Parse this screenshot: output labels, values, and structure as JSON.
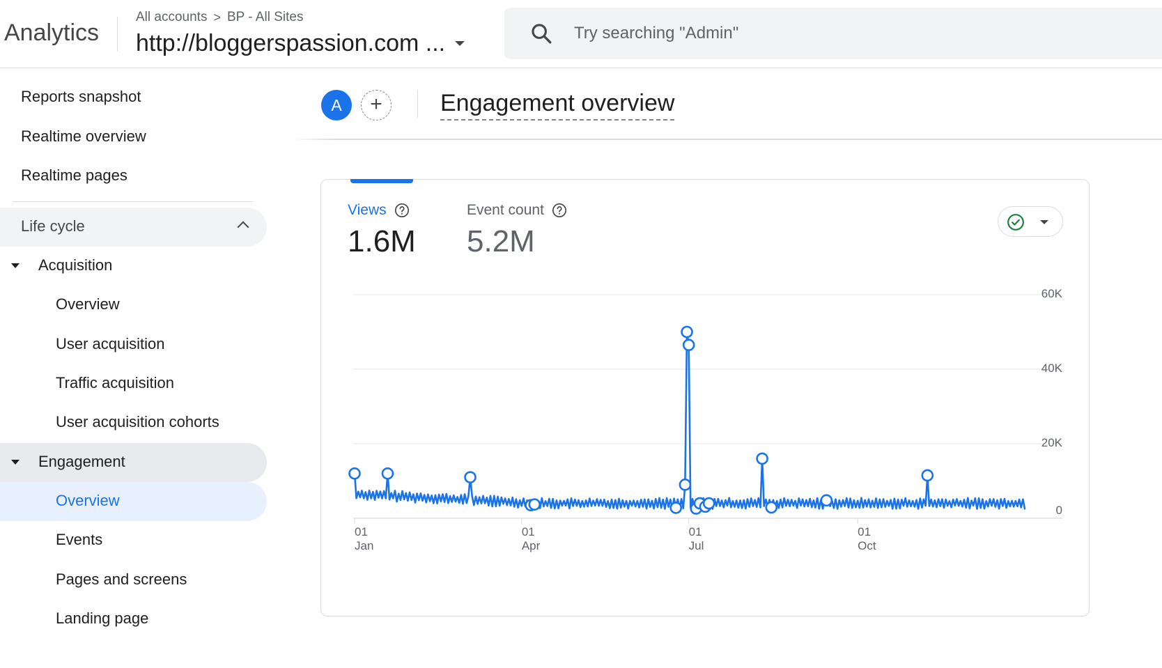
{
  "header": {
    "product_name": "Analytics",
    "breadcrumb": [
      "All accounts",
      "BP - All Sites"
    ],
    "breadcrumb_separator": ">",
    "property_name": "http://bloggerspassion.com ...",
    "search_placeholder": "Try searching \"Admin\""
  },
  "sidebar": {
    "top_items": [
      {
        "label": "Reports snapshot"
      },
      {
        "label": "Realtime overview"
      },
      {
        "label": "Realtime pages"
      }
    ],
    "section": {
      "label": "Life cycle",
      "expanded": true
    },
    "groups": [
      {
        "label": "Acquisition",
        "items": [
          {
            "label": "Overview"
          },
          {
            "label": "User acquisition"
          },
          {
            "label": "Traffic acquisition"
          },
          {
            "label": "User acquisition cohorts"
          }
        ]
      },
      {
        "label": "Engagement",
        "items": [
          {
            "label": "Overview",
            "selected": true
          },
          {
            "label": "Events"
          },
          {
            "label": "Pages and screens"
          },
          {
            "label": "Landing page"
          }
        ]
      }
    ]
  },
  "page": {
    "avatar_letter": "A",
    "add_comparison_symbol": "+",
    "title": "Engagement overview"
  },
  "card": {
    "metrics": [
      {
        "label": "Views",
        "value": "1.6M",
        "active": true
      },
      {
        "label": "Event count",
        "value": "5.2M",
        "active": false
      }
    ]
  },
  "colors": {
    "accent": "#1a73e8",
    "series": "#1a73e8",
    "check": "#188038",
    "gridline": "#e8eaed",
    "text_secondary": "#5f6368"
  },
  "icons": {
    "search": "search-icon",
    "help": "help-circle-icon",
    "check": "check-circle-icon",
    "expand": "chevron-up-icon"
  },
  "chart_data": {
    "type": "line",
    "series": [
      {
        "name": "Views",
        "values": []
      }
    ],
    "x_range": [
      "2024-01-01",
      "2024-12-31"
    ],
    "x_ticks": [
      {
        "date": "2024-01-01",
        "day": "01",
        "month": "Jan"
      },
      {
        "date": "2024-04-01",
        "day": "01",
        "month": "Apr"
      },
      {
        "date": "2024-07-01",
        "day": "01",
        "month": "Jul"
      },
      {
        "date": "2024-10-01",
        "day": "01",
        "month": "Oct"
      }
    ],
    "y_ticks": [
      "0",
      "20K",
      "40K",
      "60K"
    ],
    "y_tick_values": [
      0,
      20000,
      40000,
      60000
    ],
    "ylim": [
      0,
      60000
    ],
    "grid": true,
    "y_axis_side": "right",
    "baseline_daily_views": 4000,
    "peaks": [
      {
        "date": "2024-01-01",
        "value": 12000
      },
      {
        "date": "2024-01-19",
        "value": 12000
      },
      {
        "date": "2024-03-04",
        "value": 11000
      },
      {
        "date": "2024-06-30",
        "value": 50000
      },
      {
        "date": "2024-07-01",
        "value": 46500
      },
      {
        "date": "2024-08-10",
        "value": 16000
      },
      {
        "date": "2024-11-08",
        "value": 11500
      }
    ],
    "anomaly_points": [
      {
        "date": "2024-01-01",
        "value": 12000
      },
      {
        "date": "2024-01-19",
        "value": 12000
      },
      {
        "date": "2024-03-04",
        "value": 11000
      },
      {
        "date": "2024-04-06",
        "value": 3500
      },
      {
        "date": "2024-04-08",
        "value": 3700
      },
      {
        "date": "2024-06-24",
        "value": 2800
      },
      {
        "date": "2024-06-29",
        "value": 9000
      },
      {
        "date": "2024-06-30",
        "value": 50000
      },
      {
        "date": "2024-07-01",
        "value": 46500
      },
      {
        "date": "2024-07-05",
        "value": 2600
      },
      {
        "date": "2024-07-07",
        "value": 4000
      },
      {
        "date": "2024-07-10",
        "value": 3100
      },
      {
        "date": "2024-07-12",
        "value": 4000
      },
      {
        "date": "2024-08-10",
        "value": 16000
      },
      {
        "date": "2024-08-15",
        "value": 2900
      },
      {
        "date": "2024-09-14",
        "value": 4800
      },
      {
        "date": "2024-11-08",
        "value": 11500
      }
    ]
  }
}
